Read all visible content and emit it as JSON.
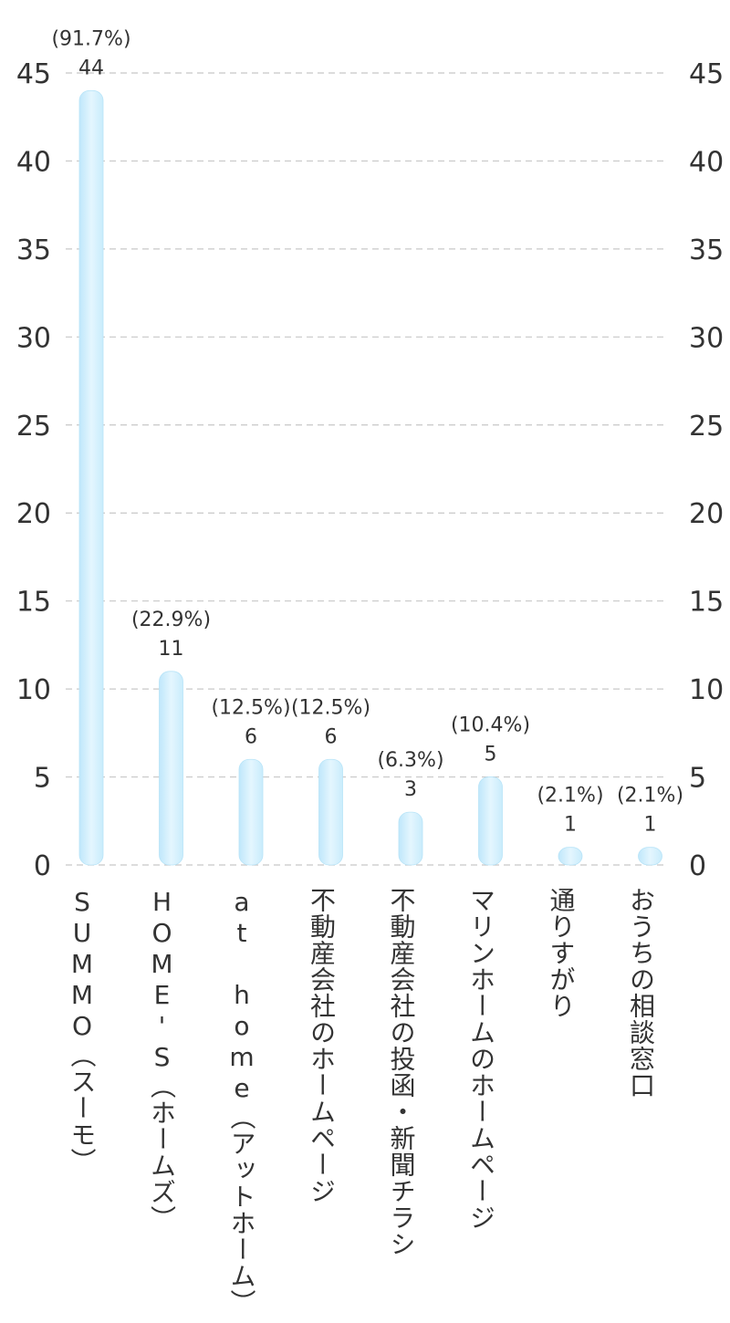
{
  "chart_data": {
    "type": "bar",
    "title": "",
    "xlabel": "",
    "ylabel": "",
    "ylim": [
      0,
      45
    ],
    "ytick_step": 5,
    "grid": true,
    "bar_color": "#d4f0fc",
    "bar_color_edge": "#b8e4f8",
    "categories": [
      "SUMMO（スーモ）",
      "HOME'S（ホームズ）",
      "at home（アットホーム）",
      "不動産会社のホームページ",
      "不動産会社の投函・新聞チラシ",
      "マリンホームのホームページ",
      "通りすがり",
      "おうちの相談窓口"
    ],
    "values": [
      44,
      11,
      6,
      6,
      3,
      5,
      1,
      1
    ],
    "value_labels": [
      "44",
      "11",
      "6",
      "6",
      "3",
      "5",
      "1",
      "1"
    ],
    "percent_labels": [
      "(91.7%)",
      "(22.9%)",
      "(12.5%)",
      "(12.5%)",
      "(6.3%)",
      "(10.4%)",
      "(2.1%)",
      "(2.1%)"
    ]
  }
}
